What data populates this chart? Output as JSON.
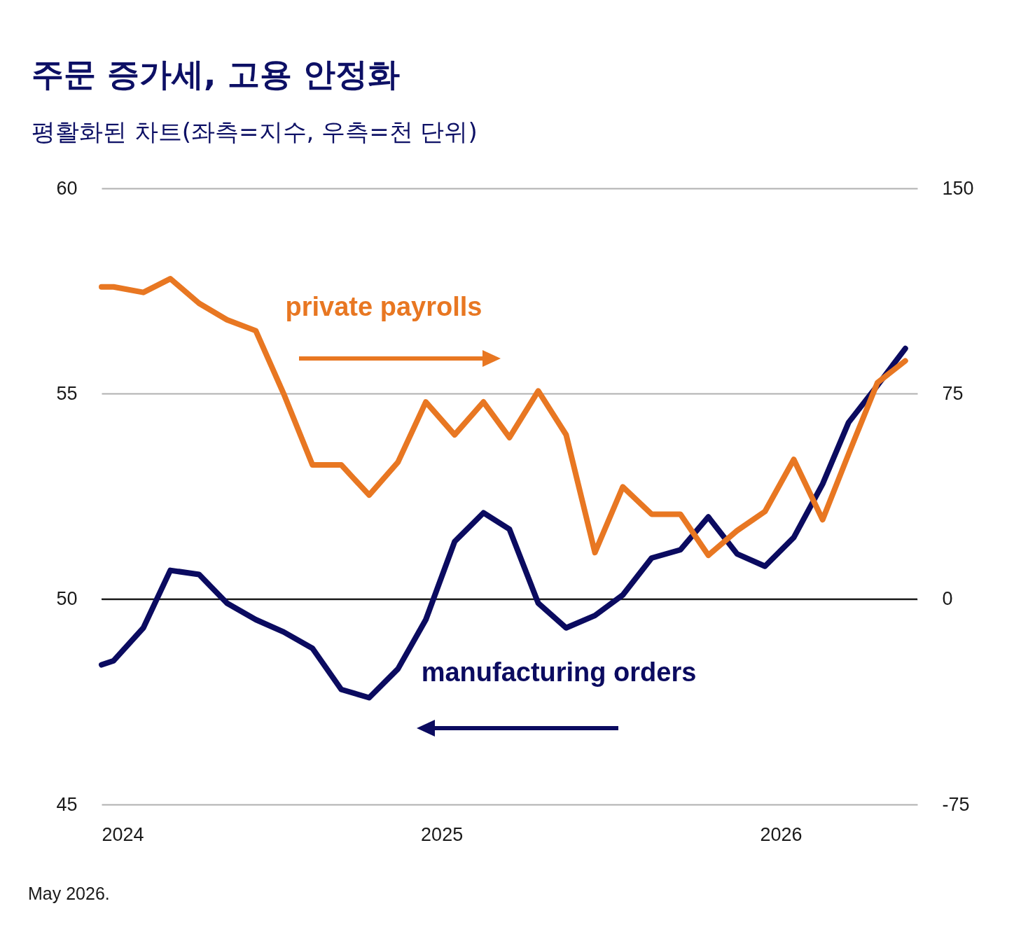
{
  "chart_data": {
    "type": "line",
    "title": "주문 증가세, 고용 안정화",
    "subtitle": "평활화된 차트(좌측=지수, 우측=천 단위)",
    "x": [
      "2024-01-01",
      "2024-01-14",
      "2024-02-15",
      "2024-03-15",
      "2024-04-15",
      "2024-05-15",
      "2024-06-15",
      "2024-07-15",
      "2024-08-15",
      "2024-09-15",
      "2024-10-15",
      "2024-11-15",
      "2024-12-15",
      "2025-01-15",
      "2025-02-15",
      "2025-03-15",
      "2025-04-15",
      "2025-05-15",
      "2025-06-15",
      "2025-07-15",
      "2025-08-15",
      "2025-09-15",
      "2025-10-15",
      "2025-11-15",
      "2025-12-15",
      "2026-01-15",
      "2026-02-15",
      "2026-03-15",
      "2026-04-15",
      "2026-05-15"
    ],
    "series": [
      {
        "name": "manufacturing orders",
        "color": "#0b0b60",
        "values": [
          48.4,
          48.5,
          49.3,
          50.7,
          50.6,
          49.9,
          49.5,
          49.2,
          48.8,
          47.8,
          47.6,
          48.3,
          49.5,
          51.4,
          52.1,
          51.7,
          49.9,
          49.3,
          49.6,
          50.1,
          51.0,
          51.2,
          52.0,
          51.1,
          50.8,
          51.5,
          52.8,
          54.3,
          55.2,
          56.1
        ]
      },
      {
        "name": "private payrolls",
        "color": "#e87722",
        "axis": "y2",
        "values": [
          114,
          114,
          112,
          117,
          108,
          102,
          98,
          75,
          49,
          49,
          38,
          50,
          72,
          60,
          72,
          59,
          76,
          60,
          17,
          41,
          31,
          31,
          16,
          25,
          32,
          51,
          29,
          53,
          79,
          87
        ]
      }
    ],
    "xlim": [
      "2024-01-01",
      "2026-05-28"
    ],
    "xticks": [
      "2024",
      "2025",
      "2026"
    ],
    "ylim": [
      45,
      60
    ],
    "yticks": [
      45,
      50,
      55,
      60
    ],
    "y2lim": [
      -75,
      150
    ],
    "y2ticks": [
      -75,
      0,
      75,
      150
    ],
    "grid": "y",
    "line_style": "solid",
    "ref_lines": [
      {
        "axis": "y",
        "value": 50,
        "color": "#000000"
      }
    ],
    "annotations": [
      "May 2026."
    ]
  }
}
